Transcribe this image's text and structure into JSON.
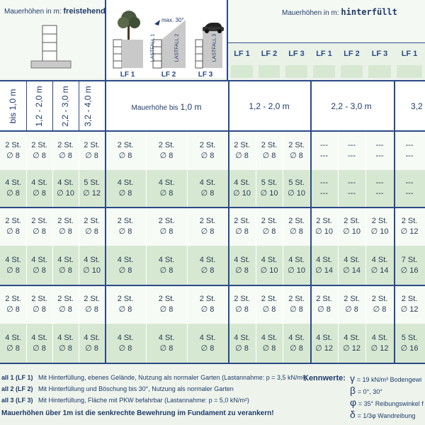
{
  "header": {
    "freistehend_label": "Mauerhöhen in m:",
    "freistehend_bold": "freistehend",
    "hinterfuellt_label": "Mauerhöhen in m:",
    "hinterfuellt_bold": "hinterfüllt",
    "max_label": "max. 30°",
    "lastfall_vertical": [
      "LASTFALL 1",
      "LASTFALL 2",
      "LASTFALL 3"
    ],
    "lf_small": [
      "LF 1",
      "LF 2",
      "LF 3"
    ],
    "lf_groups": [
      "LF 1",
      "LF 2",
      "LF 3",
      "LF 1",
      "LF 2",
      "LF 3",
      "LF 1"
    ]
  },
  "height_labels_freistehend": [
    "bis 1,0 m",
    "1,2 - 2,0 m",
    "2,2 - 3,0 m",
    "3,2 - 4,0 m"
  ],
  "height_labels_hinterfuellt": {
    "h1_prefix": "Mauerhöhe bis",
    "h1_value": "1,0 m",
    "h2": "1,2  -  2,0 m",
    "h3": "2,2  -  3,0 m",
    "h4": "3,2"
  },
  "rows": [
    [
      [
        "2 St.",
        "∅ 8"
      ],
      [
        "2 St.",
        "∅ 8"
      ],
      [
        "2 St.",
        "∅ 8"
      ],
      [
        "2 St.",
        "∅ 8"
      ],
      [
        "2 St.",
        "∅ 8"
      ],
      [
        "2 St.",
        "∅ 8"
      ],
      [
        "2 St.",
        "∅ 8"
      ],
      [
        "2 St.",
        "∅ 8"
      ],
      [
        "2 St.",
        "∅ 8"
      ],
      [
        "2 St.",
        "∅ 8"
      ],
      [
        "---",
        "---"
      ],
      [
        "---",
        "---"
      ],
      [
        "---",
        "---"
      ],
      [
        "---",
        "---"
      ]
    ],
    [
      [
        "4 St.",
        "∅ 8"
      ],
      [
        "4 St.",
        "∅ 8"
      ],
      [
        "4 St.",
        "∅ 10"
      ],
      [
        "5 St.",
        "∅ 12"
      ],
      [
        "4 St.",
        "∅ 8"
      ],
      [
        "4 St.",
        "∅ 8"
      ],
      [
        "4 St.",
        "∅ 8"
      ],
      [
        "4 St.",
        "∅ 10"
      ],
      [
        "5 St.",
        "∅ 10"
      ],
      [
        "5 St.",
        "∅ 10"
      ],
      [
        "---",
        "---"
      ],
      [
        "---",
        "---"
      ],
      [
        "---",
        "---"
      ],
      [
        "---",
        "---"
      ]
    ],
    [
      [
        "2 St.",
        "∅ 8"
      ],
      [
        "2 St.",
        "∅ 8"
      ],
      [
        "2 St.",
        "∅ 8"
      ],
      [
        "2 St.",
        "∅ 8"
      ],
      [
        "2 St.",
        "∅ 8"
      ],
      [
        "2 St.",
        "∅ 8"
      ],
      [
        "2 St.",
        "∅ 8"
      ],
      [
        "2 St.",
        "∅ 8"
      ],
      [
        "2 St.",
        "∅ 8"
      ],
      [
        "2 St.",
        "∅ 8"
      ],
      [
        "2 St.",
        "∅ 10"
      ],
      [
        "2 St.",
        "∅ 10"
      ],
      [
        "2 St.",
        "∅ 10"
      ],
      [
        "2 St.",
        "∅ 12"
      ]
    ],
    [
      [
        "4 St.",
        "∅ 8"
      ],
      [
        "4 St.",
        "∅ 8"
      ],
      [
        "4 St.",
        "∅ 8"
      ],
      [
        "4 St.",
        "∅ 10"
      ],
      [
        "4 St.",
        "∅ 8"
      ],
      [
        "4 St.",
        "∅ 8"
      ],
      [
        "4 St.",
        "∅ 8"
      ],
      [
        "4 St.",
        "∅ 8"
      ],
      [
        "4 St.",
        "∅ 10"
      ],
      [
        "4 St.",
        "∅ 10"
      ],
      [
        "4 St.",
        "∅ 14"
      ],
      [
        "4 St.",
        "∅ 14"
      ],
      [
        "4 St.",
        "∅ 14"
      ],
      [
        "7 St.",
        "∅ 16"
      ]
    ],
    [
      [
        "2 St.",
        "∅ 8"
      ],
      [
        "2 St.",
        "∅ 8"
      ],
      [
        "2 St.",
        "∅ 8"
      ],
      [
        "2 St.",
        "∅ 8"
      ],
      [
        "2 St.",
        "∅ 8"
      ],
      [
        "2 St.",
        "∅ 8"
      ],
      [
        "2 St.",
        "∅ 8"
      ],
      [
        "2 St.",
        "∅ 8"
      ],
      [
        "2 St.",
        "∅ 8"
      ],
      [
        "2 St.",
        "∅ 8"
      ],
      [
        "2 St.",
        "∅ 8"
      ],
      [
        "2 St.",
        "∅ 8"
      ],
      [
        "2 St.",
        "∅ 8"
      ],
      [
        "2 St.",
        "∅ 12"
      ]
    ],
    [
      [
        "4 St.",
        "∅ 8"
      ],
      [
        "4 St.",
        "∅ 8"
      ],
      [
        "4 St.",
        "∅ 8"
      ],
      [
        "4 St.",
        "∅ 8"
      ],
      [
        "4 St.",
        "∅ 8"
      ],
      [
        "4 St.",
        "∅ 8"
      ],
      [
        "4 St.",
        "∅ 8"
      ],
      [
        "4 St.",
        "∅ 8"
      ],
      [
        "4 St.",
        "∅ 8"
      ],
      [
        "4 St.",
        "∅ 8"
      ],
      [
        "4 St.",
        "∅ 12"
      ],
      [
        "4 St.",
        "∅ 12"
      ],
      [
        "4 St.",
        "∅ 12"
      ],
      [
        "5 St.",
        "∅ 16"
      ]
    ]
  ],
  "legend": [
    {
      "bold": "all 1 (LF 1)",
      "text": "Mit Hinterfüllung, ebenes Gelände, Nutzung als normaler Garten  (Lastannahme: p = 3,5 kN/m²)"
    },
    {
      "bold": "all 2 (LF 2)",
      "text": "Mit Hinterfüllung und Böschung bis 30°, Nutzung als normaler Garten"
    },
    {
      "bold": "all 3 (LF 3)",
      "text": "Mit Hinterfüllung, Fläche mit PKW befahrbar (Lastannahme: p = 5,0 kN/m²)"
    }
  ],
  "note": "Mauerhöhen über 1m ist die senkrechte Bewehrung im Fundament zu verankern!",
  "kennwerte": {
    "title": "Kennwerte:",
    "lines": [
      {
        "sym": "γ",
        "text": "= 19 kN/m³ Bodengewi"
      },
      {
        "sym": "β",
        "text": "=  0°, 30°"
      },
      {
        "sym": "φ",
        "text": "= 35° Reibungswinkel f"
      },
      {
        "sym": "δ",
        "text": "= 1/3φ  Wandreibung"
      }
    ]
  },
  "colors": {
    "navy": "#1f3a6b",
    "band_green": "#d6e8d2",
    "band_white": "#f7fbf6",
    "panel_bg": "#eef4ec"
  }
}
